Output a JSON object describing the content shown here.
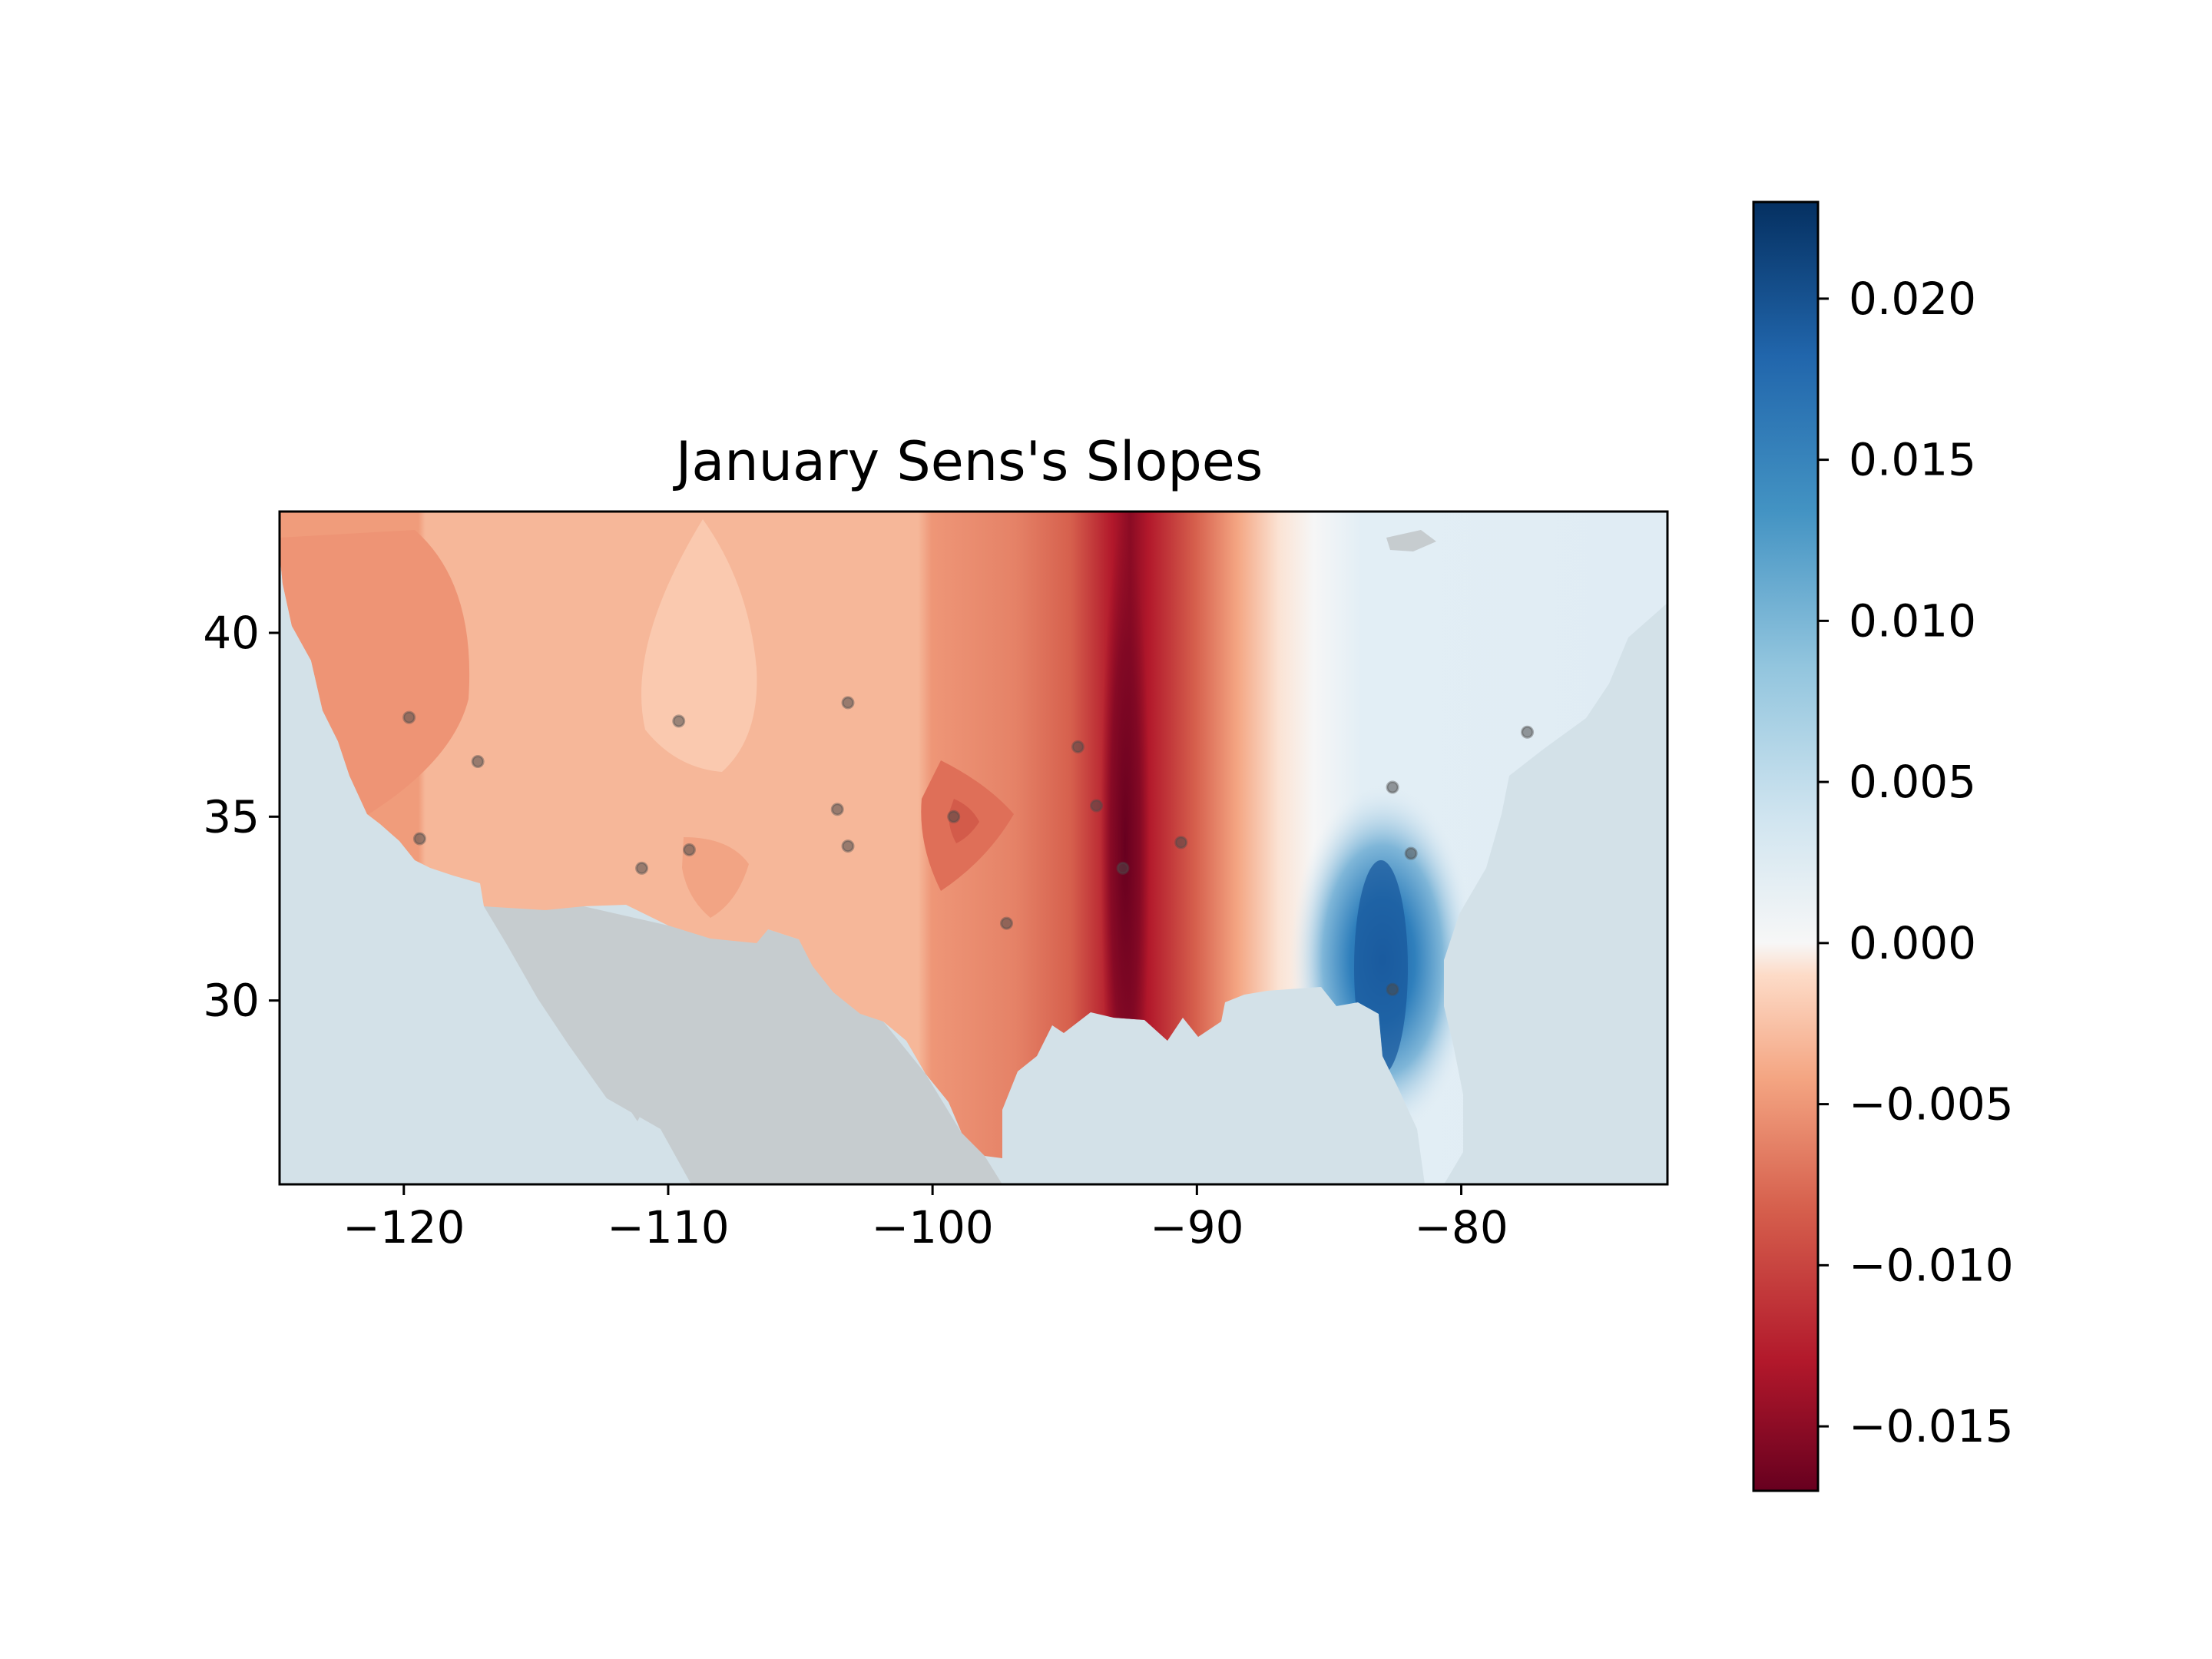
{
  "chart_data": {
    "type": "heatmap",
    "title": "January Sens's Slopes",
    "xlabel": "",
    "ylabel": "",
    "xlim": [
      -124.7,
      -72.2
    ],
    "ylim": [
      25.0,
      43.3
    ],
    "x_ticks": [
      {
        "value": -120,
        "label": "−120"
      },
      {
        "value": -110,
        "label": "−110"
      },
      {
        "value": -100,
        "label": "−100"
      },
      {
        "value": -90,
        "label": "−90"
      },
      {
        "value": -80,
        "label": "−80"
      }
    ],
    "y_ticks": [
      {
        "value": 30,
        "label": "30"
      },
      {
        "value": 35,
        "label": "35"
      },
      {
        "value": 40,
        "label": "40"
      }
    ],
    "grid": false,
    "colormap": "RdBu",
    "colorbar": {
      "position": "right",
      "range": [
        -0.017,
        0.023
      ],
      "ticks": [
        {
          "value": 0.02,
          "label": "0.020"
        },
        {
          "value": 0.015,
          "label": "0.015"
        },
        {
          "value": 0.01,
          "label": "0.010"
        },
        {
          "value": 0.005,
          "label": "0.005"
        },
        {
          "value": 0.0,
          "label": "0.000"
        },
        {
          "value": -0.005,
          "label": "−0.005"
        },
        {
          "value": -0.01,
          "label": "−0.010"
        },
        {
          "value": -0.015,
          "label": "−0.015"
        }
      ]
    },
    "stations": [
      {
        "lon": -119.8,
        "lat": 37.7
      },
      {
        "lon": -117.2,
        "lat": 36.5
      },
      {
        "lon": -119.4,
        "lat": 34.4
      },
      {
        "lon": -109.6,
        "lat": 37.6
      },
      {
        "lon": -111.0,
        "lat": 33.6
      },
      {
        "lon": -109.2,
        "lat": 34.1
      },
      {
        "lon": -103.2,
        "lat": 38.1
      },
      {
        "lon": -103.6,
        "lat": 35.2
      },
      {
        "lon": -103.2,
        "lat": 34.2
      },
      {
        "lon": -99.2,
        "lat": 35.0
      },
      {
        "lon": -97.2,
        "lat": 32.1
      },
      {
        "lon": -94.5,
        "lat": 36.9
      },
      {
        "lon": -93.8,
        "lat": 35.3
      },
      {
        "lon": -92.8,
        "lat": 33.6
      },
      {
        "lon": -90.6,
        "lat": 34.3
      },
      {
        "lon": -82.6,
        "lat": 35.8
      },
      {
        "lon": -81.9,
        "lat": 34.0
      },
      {
        "lon": -82.6,
        "lat": 30.3
      },
      {
        "lon": -77.5,
        "lat": 37.3
      }
    ]
  },
  "colors": {
    "ocean": "#d3e1e8",
    "land_outside": "#c6cccf",
    "station": "#4a4a4a"
  }
}
